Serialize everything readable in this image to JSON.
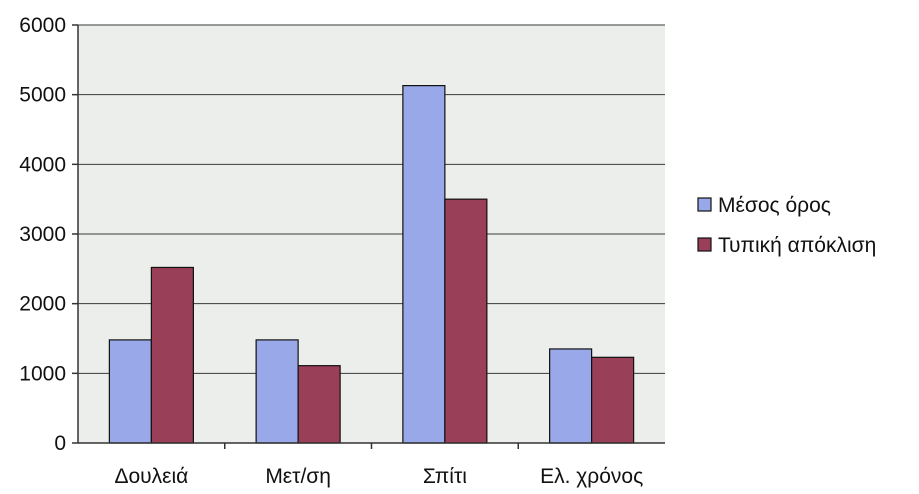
{
  "chart_data": {
    "type": "bar",
    "categories": [
      "Δουλειά",
      "Μετ/ση",
      "Σπίτι",
      "Ελ. χρόνος"
    ],
    "series": [
      {
        "name": "Μέσος όρος",
        "values": [
          1480,
          1480,
          5130,
          1350
        ],
        "color": "#99a8e8"
      },
      {
        "name": "Τυπική απόκλιση",
        "values": [
          2520,
          1110,
          3500,
          1230
        ],
        "color": "#9a3f58"
      }
    ],
    "ylim": [
      0,
      6000
    ],
    "yticks": [
      0,
      1000,
      2000,
      3000,
      4000,
      5000,
      6000
    ],
    "grid": true,
    "legend": "right"
  }
}
